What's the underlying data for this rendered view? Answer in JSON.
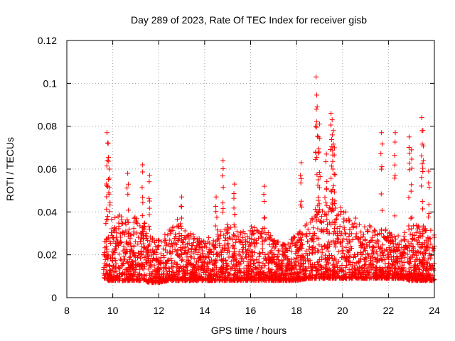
{
  "chart_data": {
    "type": "scatter",
    "title": "Day 289 of 2023, Rate Of TEC Index for receiver gisb",
    "xlabel": "GPS time / hours",
    "ylabel": "ROTI / TECUs",
    "xlim": [
      8,
      24
    ],
    "ylim": [
      0,
      0.12
    ],
    "xticks": [
      8,
      10,
      12,
      14,
      16,
      18,
      20,
      22,
      24
    ],
    "yticks": [
      0,
      0.02,
      0.04,
      0.06,
      0.08,
      0.1,
      0.12
    ],
    "xtick_labels": [
      "8",
      "10",
      "12",
      "14",
      "16",
      "18",
      "20",
      "22",
      "24"
    ],
    "ytick_labels": [
      "0",
      "0.02",
      "0.04",
      "0.06",
      "0.08",
      "0.1",
      "0.12"
    ],
    "grid": true,
    "marker": "plus",
    "color": "#ff0000",
    "series": [
      {
        "name": "ROTI",
        "envelope": {
          "x": [
            9.6,
            9.7,
            9.8,
            10.0,
            10.3,
            10.6,
            11.0,
            11.3,
            11.6,
            12.0,
            12.4,
            12.8,
            13.2,
            13.6,
            14.0,
            14.5,
            15.0,
            15.5,
            16.0,
            16.5,
            17.0,
            17.5,
            18.0,
            18.5,
            18.8,
            19.0,
            19.3,
            19.5,
            19.8,
            20.2,
            20.6,
            21.0,
            21.5,
            21.8,
            22.2,
            22.6,
            23.0,
            23.4,
            23.7,
            24.0
          ],
          "typical_low": [
            0.009,
            0.009,
            0.008,
            0.008,
            0.008,
            0.008,
            0.008,
            0.008,
            0.007,
            0.007,
            0.008,
            0.008,
            0.008,
            0.008,
            0.008,
            0.008,
            0.008,
            0.008,
            0.008,
            0.008,
            0.008,
            0.008,
            0.008,
            0.009,
            0.009,
            0.009,
            0.009,
            0.009,
            0.009,
            0.009,
            0.009,
            0.009,
            0.009,
            0.009,
            0.009,
            0.009,
            0.008,
            0.008,
            0.008,
            0.008
          ],
          "typical_high": [
            0.03,
            0.045,
            0.04,
            0.035,
            0.038,
            0.035,
            0.038,
            0.036,
            0.032,
            0.026,
            0.03,
            0.036,
            0.03,
            0.028,
            0.026,
            0.03,
            0.035,
            0.03,
            0.032,
            0.034,
            0.026,
            0.024,
            0.03,
            0.034,
            0.04,
            0.045,
            0.045,
            0.046,
            0.042,
            0.038,
            0.036,
            0.034,
            0.03,
            0.032,
            0.028,
            0.028,
            0.034,
            0.032,
            0.034,
            0.03
          ]
        },
        "peaks": [
          {
            "x": 9.75,
            "y": 0.077
          },
          {
            "x": 9.8,
            "y": 0.072
          },
          {
            "x": 9.85,
            "y": 0.06
          },
          {
            "x": 10.65,
            "y": 0.058
          },
          {
            "x": 11.3,
            "y": 0.062
          },
          {
            "x": 11.6,
            "y": 0.057
          },
          {
            "x": 13.0,
            "y": 0.047
          },
          {
            "x": 14.5,
            "y": 0.047
          },
          {
            "x": 14.8,
            "y": 0.064
          },
          {
            "x": 15.3,
            "y": 0.053
          },
          {
            "x": 16.6,
            "y": 0.052
          },
          {
            "x": 18.2,
            "y": 0.063
          },
          {
            "x": 18.85,
            "y": 0.103
          },
          {
            "x": 18.9,
            "y": 0.089
          },
          {
            "x": 18.95,
            "y": 0.075
          },
          {
            "x": 19.0,
            "y": 0.081
          },
          {
            "x": 19.3,
            "y": 0.067
          },
          {
            "x": 19.5,
            "y": 0.086
          },
          {
            "x": 19.55,
            "y": 0.083
          },
          {
            "x": 19.6,
            "y": 0.078
          },
          {
            "x": 19.65,
            "y": 0.07
          },
          {
            "x": 21.7,
            "y": 0.077
          },
          {
            "x": 22.3,
            "y": 0.077
          },
          {
            "x": 22.9,
            "y": 0.075
          },
          {
            "x": 23.0,
            "y": 0.069
          },
          {
            "x": 23.45,
            "y": 0.084
          },
          {
            "x": 23.5,
            "y": 0.078
          },
          {
            "x": 23.75,
            "y": 0.059
          }
        ]
      }
    ]
  }
}
